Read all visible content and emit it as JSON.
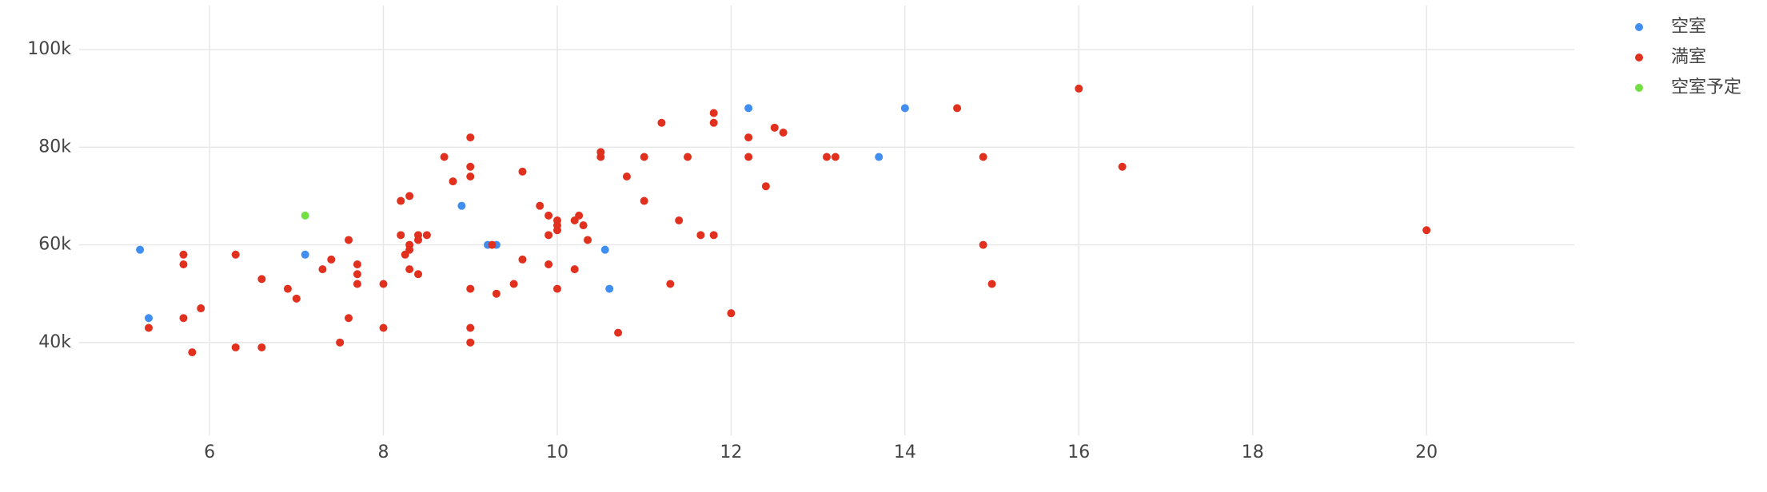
{
  "chart_data": {
    "type": "scatter",
    "xlim": [
      4.5,
      21.7
    ],
    "xticks": [
      6,
      8,
      10,
      12,
      14,
      16,
      18,
      20
    ],
    "ylim": [
      21000,
      109000
    ],
    "yticks": [
      {
        "value": 40000,
        "label": "40k"
      },
      {
        "value": 60000,
        "label": "60k"
      },
      {
        "value": 80000,
        "label": "80k"
      },
      {
        "value": 100000,
        "label": "100k"
      }
    ],
    "grid": true,
    "legend": "top-right",
    "series": [
      {
        "name": "空室",
        "color": "#3f8ef0",
        "x": [
          5.2,
          5.3,
          7.1,
          8.9,
          9.2,
          9.3,
          10.55,
          10.6,
          12.2,
          13.7,
          14
        ],
        "values": [
          59000,
          45000,
          58000,
          68000,
          60000,
          60000,
          59000,
          51000,
          88000,
          78000,
          88000
        ]
      },
      {
        "name": "満室",
        "color": "#e2301f",
        "x": [
          5.3,
          5.7,
          5.7,
          5.7,
          5.8,
          5.9,
          6.3,
          6.3,
          6.6,
          6.6,
          6.9,
          7.0,
          7.3,
          7.4,
          7.5,
          7.6,
          7.6,
          7.7,
          7.7,
          7.7,
          8.0,
          8.0,
          8.2,
          8.2,
          8.3,
          8.3,
          8.3,
          8.25,
          8.3,
          8.4,
          8.4,
          8.4,
          8.5,
          8.7,
          8.8,
          9.0,
          9.0,
          9.0,
          9.0,
          9.0,
          9.0,
          9.25,
          9.3,
          9.5,
          9.6,
          9.6,
          9.8,
          9.9,
          9.9,
          9.9,
          10,
          10,
          10,
          10,
          10.2,
          10.25,
          10.2,
          10.3,
          10.35,
          10.5,
          10.5,
          10.7,
          10.8,
          11,
          11,
          11.2,
          11.3,
          11.4,
          11.5,
          11.65,
          11.8,
          11.8,
          11.8,
          12,
          12.2,
          12.2,
          12.4,
          12.5,
          12.6,
          13.1,
          13.2,
          14.6,
          14.9,
          14.9,
          15,
          16,
          16.5,
          20
        ],
        "values": [
          43000,
          58000,
          56000,
          45000,
          38000,
          47000,
          58000,
          39000,
          53000,
          39000,
          51000,
          49000,
          55000,
          57000,
          40000,
          61000,
          45000,
          54000,
          52000,
          56000,
          52000,
          43000,
          69000,
          62000,
          70000,
          60000,
          59000,
          58000,
          55000,
          62000,
          61000,
          54000,
          62000,
          78000,
          73000,
          82000,
          76000,
          74000,
          51000,
          43000,
          40000,
          60000,
          50000,
          52000,
          75000,
          57000,
          68000,
          66000,
          62000,
          56000,
          65000,
          64000,
          63000,
          51000,
          65000,
          66000,
          55000,
          64000,
          61000,
          79000,
          78000,
          42000,
          74000,
          78000,
          69000,
          85000,
          52000,
          65000,
          78000,
          62000,
          87000,
          85000,
          62000,
          46000,
          82000,
          78000,
          72000,
          84000,
          83000,
          78000,
          78000,
          88000,
          78000,
          60000,
          52000,
          92000,
          76000,
          63000
        ]
      },
      {
        "name": "空室予定",
        "color": "#72e043",
        "x": [
          7.1
        ],
        "values": [
          66000
        ]
      }
    ]
  }
}
